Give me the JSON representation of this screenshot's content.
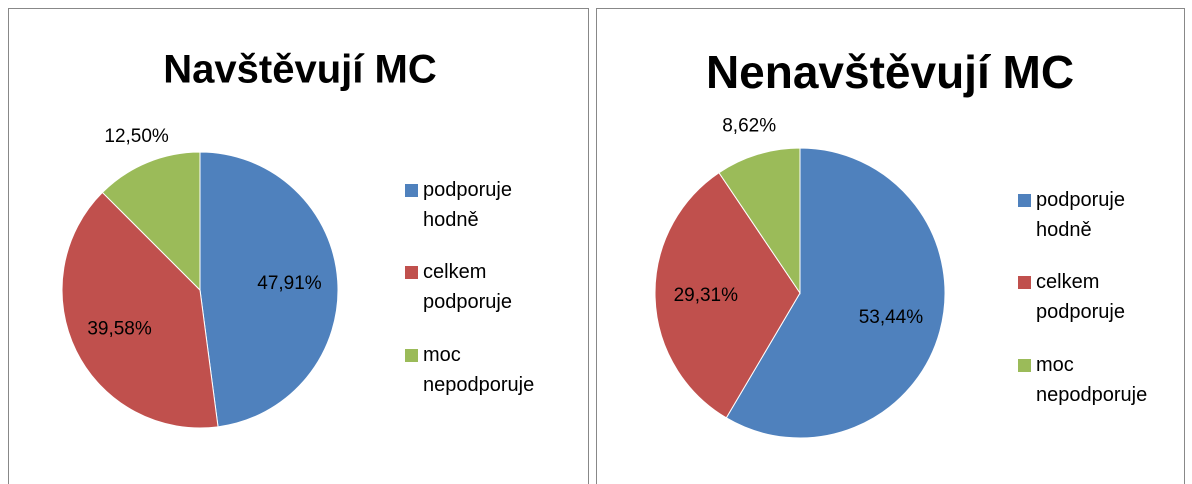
{
  "chart_data": [
    {
      "type": "pie",
      "title": "Navštěvují MC",
      "categories": [
        "podporuje hodně",
        "celkem podporuje",
        "moc nepodporuje"
      ],
      "values": [
        47.91,
        39.58,
        12.5
      ],
      "value_labels": [
        "47,91%",
        "39,58%",
        "12,50%"
      ],
      "colors": [
        "#4f81bd",
        "#c0504d",
        "#9bbb59"
      ],
      "legend": "right"
    },
    {
      "type": "pie",
      "title": "Nenavštěvují MC",
      "categories": [
        "podporuje hodně",
        "celkem podporuje",
        "moc nepodporuje"
      ],
      "values": [
        53.44,
        29.31,
        8.62
      ],
      "value_labels": [
        "53,44%",
        "29,31%",
        "8,62%"
      ],
      "colors": [
        "#4f81bd",
        "#c0504d",
        "#9bbb59"
      ],
      "legend": "right"
    }
  ]
}
